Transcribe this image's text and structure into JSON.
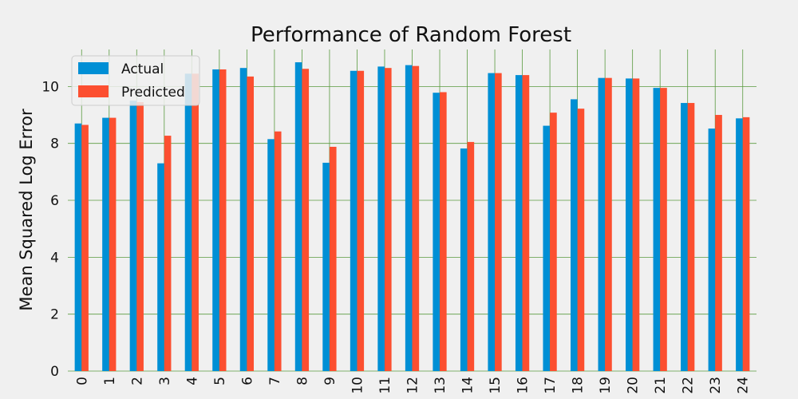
{
  "chart_data": {
    "type": "bar",
    "title": "Performance of Random Forest",
    "xlabel": "",
    "ylabel": "Mean Squared Log Error",
    "categories": [
      "0",
      "1",
      "2",
      "3",
      "4",
      "5",
      "6",
      "7",
      "8",
      "9",
      "10",
      "11",
      "12",
      "13",
      "14",
      "15",
      "16",
      "17",
      "18",
      "19",
      "20",
      "21",
      "22",
      "23",
      "24"
    ],
    "series": [
      {
        "name": "Actual",
        "color": "#008fd5",
        "values": [
          8.7,
          8.9,
          9.5,
          7.3,
          10.45,
          10.6,
          10.65,
          8.15,
          10.85,
          7.32,
          10.55,
          10.7,
          10.75,
          9.78,
          7.82,
          10.47,
          10.4,
          8.62,
          9.55,
          10.3,
          10.28,
          9.95,
          9.42,
          8.52,
          8.88
        ]
      },
      {
        "name": "Predicted",
        "color": "#fc4f30",
        "values": [
          8.65,
          8.9,
          9.45,
          8.27,
          10.45,
          10.6,
          10.35,
          8.42,
          10.62,
          7.88,
          10.55,
          10.65,
          10.72,
          9.8,
          8.05,
          10.47,
          10.4,
          9.08,
          9.22,
          10.3,
          10.28,
          9.95,
          9.42,
          9.0,
          8.92
        ]
      }
    ],
    "yticks": [
      0,
      2,
      4,
      6,
      8,
      10
    ],
    "ylim": [
      0,
      11.3
    ],
    "grid": true,
    "grid_color": "#5a9a3f",
    "legend_position": "top-left"
  }
}
